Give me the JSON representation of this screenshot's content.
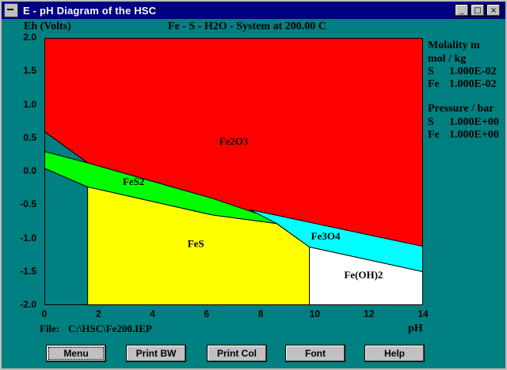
{
  "window": {
    "title": "E - pH Diagram of the HSC",
    "controls": [
      "minimize",
      "maximize",
      "close"
    ]
  },
  "header": {
    "ylabel": "Eh (Volts)",
    "system_title": "Fe - S - H2O - System at 200.00 C"
  },
  "info_panel": {
    "molality_title": "Molality m",
    "molality_units": "mol / kg",
    "molality": [
      {
        "element": "S",
        "value": "1.000E-02"
      },
      {
        "element": "Fe",
        "value": "1.000E-02"
      }
    ],
    "pressure_title": "Pressure / bar",
    "pressure": [
      {
        "element": "S",
        "value": "1.000E+00"
      },
      {
        "element": "Fe",
        "value": "1.000E+00"
      }
    ]
  },
  "footer": {
    "file_label": "File:",
    "file_path": "C:\\HSC\\Fe200.IEP",
    "xlabel": "pH"
  },
  "buttons": [
    {
      "label": "Menu"
    },
    {
      "label": "Print BW"
    },
    {
      "label": "Print Col"
    },
    {
      "label": "Font"
    },
    {
      "label": "Help"
    }
  ],
  "colors": {
    "Fe2O3": "#ff0000",
    "FeS2": "#00ff00",
    "FeS": "#ffff00",
    "Fe3O4": "#00ffff",
    "Fe(OH)2": "#ffffff"
  },
  "chart_data": {
    "type": "area",
    "title": "Fe - S - H2O - System at 200.00 C",
    "xlabel": "pH",
    "ylabel": "Eh (Volts)",
    "xlim": [
      0,
      14
    ],
    "ylim": [
      -2.0,
      2.0
    ],
    "x_ticks": [
      "0",
      "2",
      "4",
      "6",
      "8",
      "10",
      "12",
      "14"
    ],
    "y_ticks": [
      "2.0",
      "1.5",
      "1.0",
      "0.5",
      "0.0",
      "-0.5",
      "-1.0",
      "-1.5",
      "-2.0"
    ],
    "grid": false,
    "regions": [
      {
        "name": "Fe2O3",
        "polygon": [
          [
            0,
            2.0
          ],
          [
            14,
            2.0
          ],
          [
            14,
            -1.12
          ],
          [
            8.9,
            -0.77
          ],
          [
            6.2,
            -0.4
          ],
          [
            1.6,
            0.13
          ],
          [
            0,
            0.6
          ]
        ],
        "label_at": [
          7,
          0.4
        ]
      },
      {
        "name": "FeS2",
        "polygon": [
          [
            0,
            0.3
          ],
          [
            1.6,
            0.13
          ],
          [
            6.2,
            -0.4
          ],
          [
            8.9,
            -0.77
          ],
          [
            9.2,
            -0.75
          ],
          [
            8.6,
            -0.78
          ],
          [
            6.2,
            -0.65
          ],
          [
            1.6,
            -0.23
          ],
          [
            0,
            0.05
          ]
        ],
        "label_at": [
          3.3,
          -0.2
        ]
      },
      {
        "name": "FeS",
        "polygon": [
          [
            1.6,
            -0.23
          ],
          [
            6.2,
            -0.65
          ],
          [
            8.6,
            -0.78
          ],
          [
            9.8,
            -1.13
          ],
          [
            9.8,
            -2.0
          ],
          [
            1.6,
            -2.0
          ]
        ],
        "label_at": [
          5.6,
          -1.13
        ]
      },
      {
        "name": "Fe3O4",
        "polygon": [
          [
            7.6,
            -0.57
          ],
          [
            14,
            -1.12
          ],
          [
            14,
            -1.5
          ],
          [
            9.8,
            -1.13
          ],
          [
            8.6,
            -0.78
          ]
        ],
        "label_at": [
          10.4,
          -1.02
        ]
      },
      {
        "name": "Fe(OH)2",
        "polygon": [
          [
            9.8,
            -1.13
          ],
          [
            14,
            -1.5
          ],
          [
            14,
            -2.0
          ],
          [
            9.8,
            -2.0
          ]
        ],
        "label_at": [
          11.8,
          -1.6
        ]
      }
    ],
    "lines": [
      {
        "name": "upper water line",
        "points": [
          [
            0,
            0.6
          ],
          [
            1.6,
            0.13
          ]
        ]
      },
      {
        "name": "lower water line",
        "points": [
          [
            0,
            0.05
          ],
          [
            1.6,
            -0.23
          ]
        ]
      }
    ]
  }
}
